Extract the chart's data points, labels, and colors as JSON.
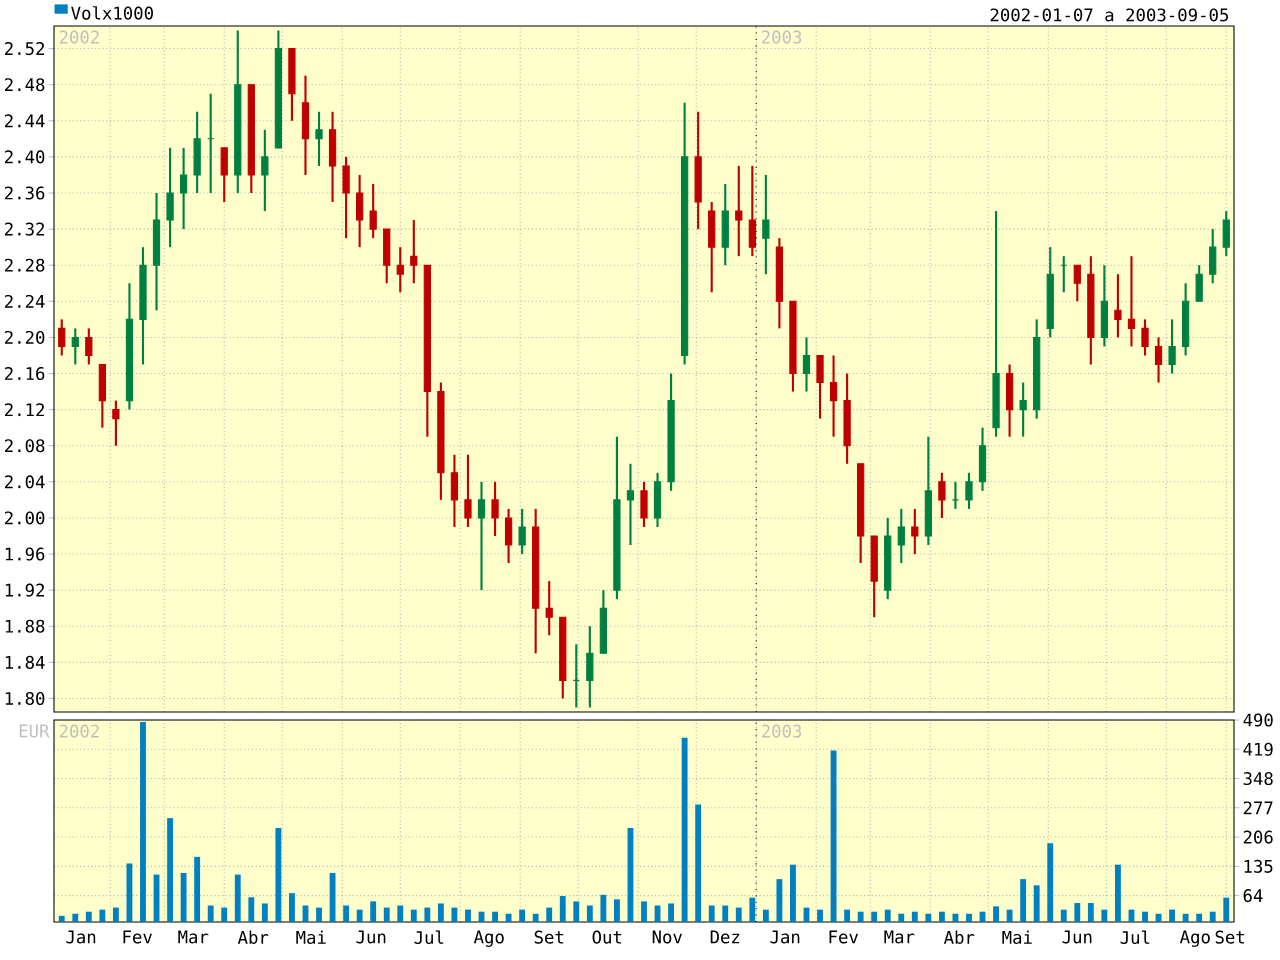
{
  "chart_data": [
    {
      "type": "candlestick",
      "subtitle": "2002-01-07 a 2003-09-05",
      "x": [
        "2002-01-07",
        "2002-01-14",
        "2002-01-21",
        "2002-01-28",
        "2002-02-04",
        "2002-02-11",
        "2002-02-18",
        "2002-02-25",
        "2002-03-04",
        "2002-03-11",
        "2002-03-18",
        "2002-03-25",
        "2002-04-01",
        "2002-04-08",
        "2002-04-15",
        "2002-04-22",
        "2002-04-29",
        "2002-05-06",
        "2002-05-13",
        "2002-05-20",
        "2002-05-27",
        "2002-06-03",
        "2002-06-10",
        "2002-06-17",
        "2002-06-24",
        "2002-07-01",
        "2002-07-08",
        "2002-07-15",
        "2002-07-22",
        "2002-07-29",
        "2002-08-05",
        "2002-08-12",
        "2002-08-19",
        "2002-08-26",
        "2002-09-02",
        "2002-09-09",
        "2002-09-16",
        "2002-09-23",
        "2002-09-30",
        "2002-10-07",
        "2002-10-14",
        "2002-10-21",
        "2002-10-28",
        "2002-11-04",
        "2002-11-11",
        "2002-11-18",
        "2002-11-25",
        "2002-12-02",
        "2002-12-09",
        "2002-12-16",
        "2002-12-23",
        "2002-12-30",
        "2003-01-06",
        "2003-01-13",
        "2003-01-20",
        "2003-01-27",
        "2003-02-03",
        "2003-02-10",
        "2003-02-17",
        "2003-02-24",
        "2003-03-03",
        "2003-03-10",
        "2003-03-17",
        "2003-03-24",
        "2003-03-31",
        "2003-04-07",
        "2003-04-14",
        "2003-04-21",
        "2003-04-28",
        "2003-05-05",
        "2003-05-12",
        "2003-05-19",
        "2003-05-26",
        "2003-06-02",
        "2003-06-09",
        "2003-06-16",
        "2003-06-23",
        "2003-06-30",
        "2003-07-07",
        "2003-07-14",
        "2003-07-21",
        "2003-07-28",
        "2003-08-04",
        "2003-08-11",
        "2003-08-18",
        "2003-08-25",
        "2003-09-01"
      ],
      "ohlc": [
        [
          2.21,
          2.22,
          2.18,
          2.19
        ],
        [
          2.19,
          2.21,
          2.17,
          2.2
        ],
        [
          2.2,
          2.21,
          2.17,
          2.18
        ],
        [
          2.17,
          2.17,
          2.1,
          2.13
        ],
        [
          2.12,
          2.13,
          2.08,
          2.11
        ],
        [
          2.13,
          2.26,
          2.12,
          2.22
        ],
        [
          2.22,
          2.3,
          2.17,
          2.28
        ],
        [
          2.28,
          2.36,
          2.23,
          2.33
        ],
        [
          2.33,
          2.41,
          2.3,
          2.36
        ],
        [
          2.36,
          2.41,
          2.32,
          2.38
        ],
        [
          2.38,
          2.45,
          2.36,
          2.42
        ],
        [
          2.42,
          2.47,
          2.36,
          2.42
        ],
        [
          2.41,
          2.41,
          2.35,
          2.38
        ],
        [
          2.38,
          2.54,
          2.36,
          2.48
        ],
        [
          2.48,
          2.48,
          2.36,
          2.38
        ],
        [
          2.38,
          2.43,
          2.34,
          2.4
        ],
        [
          2.41,
          2.54,
          2.41,
          2.52
        ],
        [
          2.52,
          2.52,
          2.44,
          2.47
        ],
        [
          2.46,
          2.49,
          2.38,
          2.42
        ],
        [
          2.42,
          2.45,
          2.39,
          2.43
        ],
        [
          2.43,
          2.45,
          2.35,
          2.39
        ],
        [
          2.39,
          2.4,
          2.31,
          2.36
        ],
        [
          2.36,
          2.38,
          2.3,
          2.33
        ],
        [
          2.34,
          2.37,
          2.31,
          2.32
        ],
        [
          2.32,
          2.32,
          2.26,
          2.28
        ],
        [
          2.28,
          2.3,
          2.25,
          2.27
        ],
        [
          2.29,
          2.33,
          2.26,
          2.28
        ],
        [
          2.28,
          2.28,
          2.09,
          2.14
        ],
        [
          2.14,
          2.15,
          2.02,
          2.05
        ],
        [
          2.05,
          2.07,
          1.99,
          2.02
        ],
        [
          2.02,
          2.07,
          1.99,
          2.0
        ],
        [
          2.0,
          2.04,
          1.92,
          2.02
        ],
        [
          2.02,
          2.04,
          1.98,
          2.0
        ],
        [
          2.0,
          2.01,
          1.95,
          1.97
        ],
        [
          1.97,
          2.01,
          1.96,
          1.99
        ],
        [
          1.99,
          2.01,
          1.85,
          1.9
        ],
        [
          1.9,
          1.93,
          1.87,
          1.89
        ],
        [
          1.89,
          1.89,
          1.8,
          1.82
        ],
        [
          1.82,
          1.86,
          1.79,
          1.82
        ],
        [
          1.82,
          1.88,
          1.79,
          1.85
        ],
        [
          1.85,
          1.92,
          1.85,
          1.9
        ],
        [
          1.92,
          2.09,
          1.91,
          2.02
        ],
        [
          2.02,
          2.06,
          1.97,
          2.03
        ],
        [
          2.03,
          2.04,
          1.99,
          2.0
        ],
        [
          2.0,
          2.05,
          1.99,
          2.04
        ],
        [
          2.04,
          2.16,
          2.03,
          2.13
        ],
        [
          2.18,
          2.46,
          2.17,
          2.4
        ],
        [
          2.4,
          2.45,
          2.32,
          2.35
        ],
        [
          2.34,
          2.35,
          2.25,
          2.3
        ],
        [
          2.3,
          2.37,
          2.28,
          2.34
        ],
        [
          2.34,
          2.39,
          2.29,
          2.33
        ],
        [
          2.33,
          2.39,
          2.29,
          2.3
        ],
        [
          2.31,
          2.38,
          2.27,
          2.33
        ],
        [
          2.3,
          2.31,
          2.21,
          2.24
        ],
        [
          2.24,
          2.24,
          2.14,
          2.16
        ],
        [
          2.16,
          2.2,
          2.14,
          2.18
        ],
        [
          2.18,
          2.18,
          2.11,
          2.15
        ],
        [
          2.15,
          2.18,
          2.09,
          2.13
        ],
        [
          2.13,
          2.16,
          2.06,
          2.08
        ],
        [
          2.06,
          2.06,
          1.95,
          1.98
        ],
        [
          1.98,
          1.98,
          1.89,
          1.93
        ],
        [
          1.92,
          2.0,
          1.91,
          1.98
        ],
        [
          1.97,
          2.01,
          1.95,
          1.99
        ],
        [
          1.99,
          2.01,
          1.96,
          1.98
        ],
        [
          1.98,
          2.09,
          1.97,
          2.03
        ],
        [
          2.04,
          2.05,
          2.0,
          2.02
        ],
        [
          2.02,
          2.04,
          2.01,
          2.02
        ],
        [
          2.02,
          2.05,
          2.01,
          2.04
        ],
        [
          2.04,
          2.1,
          2.03,
          2.08
        ],
        [
          2.1,
          2.34,
          2.09,
          2.16
        ],
        [
          2.16,
          2.17,
          2.09,
          2.12
        ],
        [
          2.12,
          2.15,
          2.09,
          2.13
        ],
        [
          2.12,
          2.22,
          2.11,
          2.2
        ],
        [
          2.21,
          2.3,
          2.2,
          2.27
        ],
        [
          2.28,
          2.29,
          2.25,
          2.28
        ],
        [
          2.28,
          2.28,
          2.24,
          2.26
        ],
        [
          2.27,
          2.29,
          2.17,
          2.2
        ],
        [
          2.2,
          2.28,
          2.19,
          2.24
        ],
        [
          2.23,
          2.27,
          2.2,
          2.22
        ],
        [
          2.22,
          2.29,
          2.19,
          2.21
        ],
        [
          2.21,
          2.22,
          2.18,
          2.19
        ],
        [
          2.19,
          2.2,
          2.15,
          2.17
        ],
        [
          2.17,
          2.22,
          2.16,
          2.19
        ],
        [
          2.19,
          2.26,
          2.18,
          2.24
        ],
        [
          2.24,
          2.28,
          2.24,
          2.27
        ],
        [
          2.27,
          2.32,
          2.26,
          2.3
        ],
        [
          2.3,
          2.34,
          2.29,
          2.33
        ]
      ],
      "colors": [
        "#c00000",
        "#008040",
        "#c00000",
        "#c00000",
        "#c00000",
        "#008040",
        "#008040",
        "#008040",
        "#008040",
        "#008040",
        "#008040",
        "#008040",
        "#c00000",
        "#008040",
        "#c00000",
        "#008040",
        "#008040",
        "#c00000",
        "#c00000",
        "#008040",
        "#c00000",
        "#c00000",
        "#c00000",
        "#c00000",
        "#c00000",
        "#c00000",
        "#c00000",
        "#c00000",
        "#c00000",
        "#c00000",
        "#c00000",
        "#008040",
        "#c00000",
        "#c00000",
        "#008040",
        "#c00000",
        "#c00000",
        "#c00000",
        "#008040",
        "#008040",
        "#008040",
        "#008040",
        "#008040",
        "#c00000",
        "#008040",
        "#008040",
        "#008040",
        "#c00000",
        "#c00000",
        "#008040",
        "#c00000",
        "#c00000",
        "#008040",
        "#c00000",
        "#c00000",
        "#008040",
        "#c00000",
        "#c00000",
        "#c00000",
        "#c00000",
        "#c00000",
        "#008040",
        "#008040",
        "#c00000",
        "#008040",
        "#c00000",
        "#008040",
        "#008040",
        "#008040",
        "#008040",
        "#c00000",
        "#008040",
        "#008040",
        "#008040",
        "#008040",
        "#c00000",
        "#c00000",
        "#008040",
        "#c00000",
        "#c00000",
        "#c00000",
        "#c00000",
        "#008040",
        "#008040",
        "#008040",
        "#008040",
        "#008040"
      ],
      "xlim": [
        "2002-01-03",
        "2003-09-05"
      ],
      "ylim": [
        1.785,
        2.545
      ],
      "xticks": [
        {
          "value": "2002-02-01",
          "label": null
        },
        {
          "value": "2002-03-01",
          "label": null
        },
        {
          "value": "2002-04-01",
          "label": null
        },
        {
          "value": "2002-05-01",
          "label": null
        },
        {
          "value": "2002-06-01",
          "label": null
        },
        {
          "value": "2002-07-01",
          "label": null
        },
        {
          "value": "2002-08-01",
          "label": null
        },
        {
          "value": "2002-09-01",
          "label": null
        },
        {
          "value": "2002-10-01",
          "label": null
        },
        {
          "value": "2002-11-01",
          "label": null
        },
        {
          "value": "2002-12-01",
          "label": null
        },
        {
          "value": "2003-01-01",
          "label": null
        },
        {
          "value": "2003-02-01",
          "label": null
        },
        {
          "value": "2003-03-01",
          "label": null
        },
        {
          "value": "2003-04-01",
          "label": null
        },
        {
          "value": "2003-05-01",
          "label": null
        },
        {
          "value": "2003-06-01",
          "label": null
        },
        {
          "value": "2003-07-01",
          "label": null
        },
        {
          "value": "2003-08-01",
          "label": null
        },
        {
          "value": "2003-09-01",
          "label": null
        }
      ],
      "yticks": [
        {
          "value": 1.8,
          "label": "1.80"
        },
        {
          "value": 1.84,
          "label": "1.84"
        },
        {
          "value": 1.88,
          "label": "1.88"
        },
        {
          "value": 1.92,
          "label": "1.92"
        },
        {
          "value": 1.96,
          "label": "1.96"
        },
        {
          "value": 2.0,
          "label": "2.00"
        },
        {
          "value": 2.04,
          "label": "2.04"
        },
        {
          "value": 2.08,
          "label": "2.08"
        },
        {
          "value": 2.12,
          "label": "2.12"
        },
        {
          "value": 2.16,
          "label": "2.16"
        },
        {
          "value": 2.2,
          "label": "2.20"
        },
        {
          "value": 2.24,
          "label": "2.24"
        },
        {
          "value": 2.28,
          "label": "2.28"
        },
        {
          "value": 2.32,
          "label": "2.32"
        },
        {
          "value": 2.36,
          "label": "2.36"
        },
        {
          "value": 2.4,
          "label": "2.40"
        },
        {
          "value": 2.44,
          "label": "2.44"
        },
        {
          "value": 2.48,
          "label": "2.48"
        },
        {
          "value": 2.52,
          "label": "2.52"
        }
      ],
      "grid": true,
      "tick_labels": "y",
      "ref_lines": [
        {
          "axis": "x",
          "value": "2003-01-01",
          "label": "2003",
          "line_style": "dotted",
          "color": "#000000"
        }
      ],
      "annotations": [
        "2002"
      ]
    },
    {
      "type": "bar",
      "ylabel": "EUR",
      "x": [
        "2002-01-07",
        "2002-01-14",
        "2002-01-21",
        "2002-01-28",
        "2002-02-04",
        "2002-02-11",
        "2002-02-18",
        "2002-02-25",
        "2002-03-04",
        "2002-03-11",
        "2002-03-18",
        "2002-03-25",
        "2002-04-01",
        "2002-04-08",
        "2002-04-15",
        "2002-04-22",
        "2002-04-29",
        "2002-05-06",
        "2002-05-13",
        "2002-05-20",
        "2002-05-27",
        "2002-06-03",
        "2002-06-10",
        "2002-06-17",
        "2002-06-24",
        "2002-07-01",
        "2002-07-08",
        "2002-07-15",
        "2002-07-22",
        "2002-07-29",
        "2002-08-05",
        "2002-08-12",
        "2002-08-19",
        "2002-08-26",
        "2002-09-02",
        "2002-09-09",
        "2002-09-16",
        "2002-09-23",
        "2002-09-30",
        "2002-10-07",
        "2002-10-14",
        "2002-10-21",
        "2002-10-28",
        "2002-11-04",
        "2002-11-11",
        "2002-11-18",
        "2002-11-25",
        "2002-12-02",
        "2002-12-09",
        "2002-12-16",
        "2002-12-23",
        "2002-12-30",
        "2003-01-06",
        "2003-01-13",
        "2003-01-20",
        "2003-01-27",
        "2003-02-03",
        "2003-02-10",
        "2003-02-17",
        "2003-02-24",
        "2003-03-03",
        "2003-03-10",
        "2003-03-17",
        "2003-03-24",
        "2003-03-31",
        "2003-04-07",
        "2003-04-14",
        "2003-04-21",
        "2003-04-28",
        "2003-05-05",
        "2003-05-12",
        "2003-05-19",
        "2003-05-26",
        "2003-06-02",
        "2003-06-09",
        "2003-06-16",
        "2003-06-23",
        "2003-06-30",
        "2003-07-07",
        "2003-07-14",
        "2003-07-21",
        "2003-07-28",
        "2003-08-04",
        "2003-08-11",
        "2003-08-18",
        "2003-08-25",
        "2003-09-01"
      ],
      "series": [
        {
          "name": "Volx1000",
          "color": "#0080c0",
          "values": [
            15,
            20,
            25,
            30,
            35,
            142,
            485,
            115,
            252,
            119,
            158,
            40,
            35,
            115,
            60,
            45,
            228,
            70,
            40,
            35,
            119,
            40,
            30,
            50,
            35,
            40,
            30,
            35,
            45,
            35,
            30,
            25,
            25,
            20,
            30,
            20,
            35,
            63,
            50,
            40,
            66,
            55,
            228,
            50,
            40,
            45,
            447,
            285,
            40,
            40,
            35,
            59,
            30,
            104,
            139,
            35,
            30,
            416,
            30,
            25,
            25,
            30,
            20,
            25,
            20,
            25,
            20,
            20,
            25,
            38,
            30,
            104,
            89,
            191,
            30,
            46,
            46,
            30,
            139,
            30,
            25,
            20,
            30,
            20,
            20,
            25,
            59
          ]
        }
      ],
      "xlim": [
        "2002-01-03",
        "2003-09-05"
      ],
      "ylim": [
        0,
        490
      ],
      "xticks": [
        {
          "value": "2002-01-17",
          "label": "Jan"
        },
        {
          "value": "2002-02-01",
          "label": null
        },
        {
          "value": "2002-02-15",
          "label": "Fev"
        },
        {
          "value": "2002-03-01",
          "label": null
        },
        {
          "value": "2002-03-16",
          "label": "Mar"
        },
        {
          "value": "2002-04-01",
          "label": null
        },
        {
          "value": "2002-04-16",
          "label": "Abr"
        },
        {
          "value": "2002-05-01",
          "label": null
        },
        {
          "value": "2002-05-16",
          "label": "Mai"
        },
        {
          "value": "2002-06-01",
          "label": null
        },
        {
          "value": "2002-06-16",
          "label": "Jun"
        },
        {
          "value": "2002-07-01",
          "label": null
        },
        {
          "value": "2002-07-16",
          "label": "Jul"
        },
        {
          "value": "2002-08-01",
          "label": null
        },
        {
          "value": "2002-08-16",
          "label": "Ago"
        },
        {
          "value": "2002-09-01",
          "label": null
        },
        {
          "value": "2002-09-16",
          "label": "Set"
        },
        {
          "value": "2002-10-01",
          "label": null
        },
        {
          "value": "2002-10-16",
          "label": "Out"
        },
        {
          "value": "2002-11-01",
          "label": null
        },
        {
          "value": "2002-11-16",
          "label": "Nov"
        },
        {
          "value": "2002-12-01",
          "label": null
        },
        {
          "value": "2002-12-16",
          "label": "Dez"
        },
        {
          "value": "2003-01-01",
          "label": null
        },
        {
          "value": "2003-01-16",
          "label": "Jan"
        },
        {
          "value": "2003-02-01",
          "label": null
        },
        {
          "value": "2003-02-15",
          "label": "Fev"
        },
        {
          "value": "2003-03-01",
          "label": null
        },
        {
          "value": "2003-03-16",
          "label": "Mar"
        },
        {
          "value": "2003-04-01",
          "label": null
        },
        {
          "value": "2003-04-16",
          "label": "Abr"
        },
        {
          "value": "2003-05-01",
          "label": null
        },
        {
          "value": "2003-05-16",
          "label": "Mai"
        },
        {
          "value": "2003-06-01",
          "label": null
        },
        {
          "value": "2003-06-16",
          "label": "Jun"
        },
        {
          "value": "2003-07-01",
          "label": null
        },
        {
          "value": "2003-07-16",
          "label": "Jul"
        },
        {
          "value": "2003-08-01",
          "label": null
        },
        {
          "value": "2003-08-16",
          "label": "Ago"
        },
        {
          "value": "2003-09-01",
          "label": null
        },
        {
          "value": "2003-09-03",
          "label": "Set"
        }
      ],
      "yticks": [
        64,
        135,
        206,
        277,
        348,
        419,
        490
      ],
      "grid": true,
      "legend": "top left",
      "ref_lines": [
        {
          "axis": "x",
          "value": "2003-01-01",
          "label": "2003",
          "line_style": "dotted",
          "color": "#000000"
        }
      ],
      "annotations": [
        "2002"
      ]
    }
  ]
}
